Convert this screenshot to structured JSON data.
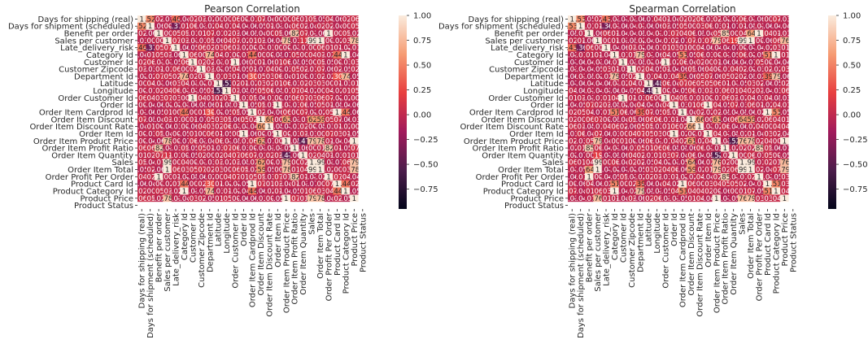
{
  "chart_data": [
    {
      "type": "heatmap",
      "title": "Pearson Correlation",
      "variables": [
        "Days for shipping (real)",
        "Days for shipment (scheduled)",
        "Benefit per order",
        "Sales per customer",
        "Late_delivery_risk",
        "Category Id",
        "Customer Id",
        "Customer Zipcode",
        "Department Id",
        "Latitude",
        "Longitude",
        "Order Customer Id",
        "Order Id",
        "Order Item Cardprod Id",
        "Order Item Discount",
        "Order Item Discount Rate",
        "Order Item Id",
        "Order Item Product Price",
        "Order Item Profit Ratio",
        "Order Item Quantity",
        "Sales",
        "Order Item Total",
        "Order Profit Per Order",
        "Product Card Id",
        "Product Category Id",
        "Product Price",
        "Product Status"
      ],
      "colorbar": {
        "ticks": [
          1.0,
          0.75,
          0.5,
          0.25,
          0.0,
          -0.25,
          -0.5,
          -0.75
        ],
        "tick_labels": [
          "1.00",
          "0.75",
          "0.50",
          "0.25",
          "0.00",
          "−0.25",
          "−0.50",
          "−0.75"
        ],
        "range": [
          -0.95,
          1.0
        ]
      },
      "colormap": [
        "#03051a",
        "#4c1d4b",
        "#a11a5b",
        "#e83f3f",
        "#f69c73",
        "#faebdd"
      ],
      "nan_color": "#ffffff",
      "strong_pairs": [
        [
          0,
          1,
          0.52
        ],
        [
          0,
          4,
          0.4
        ],
        [
          1,
          4,
          -0.37
        ],
        [
          2,
          18,
          0.82
        ],
        [
          2,
          22,
          1.0
        ],
        [
          3,
          17,
          0.78
        ],
        [
          3,
          19,
          0.11
        ],
        [
          3,
          20,
          0.99
        ],
        [
          3,
          21,
          1.0
        ],
        [
          3,
          25,
          0.78
        ],
        [
          5,
          8,
          0.74
        ],
        [
          5,
          13,
          0.44
        ],
        [
          5,
          23,
          0.44
        ],
        [
          5,
          24,
          1.0
        ],
        [
          6,
          11,
          1.0
        ],
        [
          6,
          7,
          0.02
        ],
        [
          7,
          10,
          -0.05
        ],
        [
          9,
          10,
          -0.53
        ],
        [
          8,
          13,
          0.3
        ],
        [
          8,
          23,
          0.3
        ],
        [
          8,
          24,
          0.74
        ],
        [
          12,
          16,
          1.0
        ],
        [
          13,
          23,
          1.0
        ],
        [
          13,
          24,
          0.44
        ],
        [
          14,
          15,
          0.6
        ],
        [
          14,
          17,
          0.62
        ],
        [
          14,
          20,
          0.62
        ],
        [
          14,
          21,
          0.59
        ],
        [
          15,
          20,
          0.0
        ],
        [
          17,
          20,
          0.79
        ],
        [
          17,
          21,
          0.78
        ],
        [
          17,
          25,
          1.0
        ],
        [
          18,
          22,
          0.82
        ],
        [
          19,
          17,
          -0.47
        ],
        [
          20,
          21,
          0.99
        ],
        [
          20,
          25,
          0.79
        ],
        [
          21,
          25,
          0.78
        ],
        [
          23,
          24,
          0.44
        ]
      ]
    },
    {
      "type": "heatmap",
      "title": "Spearman Correlation",
      "variables": [
        "Days for shipping (real)",
        "Days for shipment (scheduled)",
        "Benefit per order",
        "Sales per customer",
        "Late_delivery_risk",
        "Category Id",
        "Customer Id",
        "Customer Zipcode",
        "Department Id",
        "Latitude",
        "Longitude",
        "Order Customer Id",
        "Order Id",
        "Order Item Cardprod Id",
        "Order Item Discount",
        "Order Item Discount Rate",
        "Order Item Id",
        "Order Item Product Price",
        "Order Item Profit Ratio",
        "Order Item Quantity",
        "Sales",
        "Order Item Total",
        "Order Profit Per Order",
        "Product Card Id",
        "Product Category Id",
        "Product Price",
        "Product Status"
      ],
      "colorbar": {
        "ticks": [
          1.0,
          0.75,
          0.5,
          0.25,
          0.0,
          -0.25,
          -0.5,
          -0.75
        ],
        "tick_labels": [
          "1.00",
          "0.75",
          "0.50",
          "0.25",
          "0.00",
          "−0.25",
          "−0.50",
          "−0.75"
        ],
        "range": [
          -0.95,
          1.0
        ]
      },
      "colormap": [
        "#03051a",
        "#4c1d4b",
        "#a11a5b",
        "#e83f3f",
        "#f69c73",
        "#faebdd"
      ],
      "nan_color": "#ffffff",
      "strong_pairs": [
        [
          0,
          1,
          0.53
        ],
        [
          0,
          4,
          0.43
        ],
        [
          1,
          4,
          -0.36
        ],
        [
          2,
          18,
          0.85
        ],
        [
          2,
          22,
          1.0
        ],
        [
          2,
          21,
          0.64
        ],
        [
          3,
          17,
          0.79
        ],
        [
          3,
          19,
          0.19
        ],
        [
          3,
          20,
          0.99
        ],
        [
          3,
          21,
          1.0
        ],
        [
          3,
          25,
          0.76
        ],
        [
          5,
          8,
          0.79
        ],
        [
          5,
          13,
          0.51
        ],
        [
          5,
          23,
          0.51
        ],
        [
          5,
          24,
          1.0
        ],
        [
          6,
          11,
          1.0
        ],
        [
          9,
          10,
          -0.48
        ],
        [
          8,
          13,
          0.39
        ],
        [
          8,
          23,
          0.39
        ],
        [
          8,
          24,
          0.79
        ],
        [
          12,
          16,
          1.0
        ],
        [
          13,
          23,
          1.0
        ],
        [
          13,
          24,
          0.51
        ],
        [
          14,
          15,
          0.66
        ],
        [
          14,
          17,
          0.61
        ],
        [
          14,
          20,
          0.64
        ],
        [
          14,
          21,
          0.59
        ],
        [
          17,
          20,
          0.76
        ],
        [
          17,
          21,
          0.79
        ],
        [
          17,
          25,
          1.0
        ],
        [
          18,
          22,
          0.85
        ],
        [
          19,
          17,
          -0.52
        ],
        [
          20,
          21,
          0.99
        ],
        [
          20,
          25,
          0.76
        ],
        [
          21,
          25,
          0.79
        ],
        [
          23,
          24,
          0.51
        ]
      ]
    }
  ]
}
